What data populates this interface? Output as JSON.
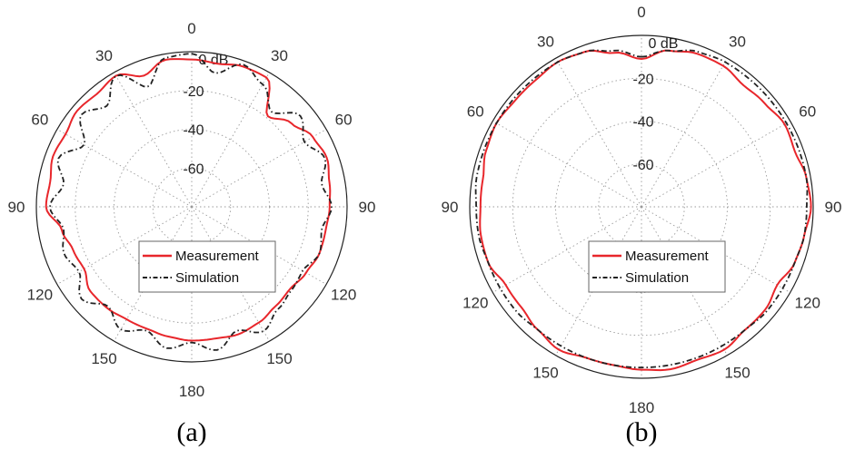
{
  "chart_data": [
    {
      "type": "polar-line",
      "caption": "(a)",
      "angle_labels": [
        "0",
        "30",
        "60",
        "90",
        "120",
        "150",
        "180",
        "150",
        "120",
        "90",
        "60",
        "30"
      ],
      "r_labels": [
        "0 dB",
        "-20",
        "-40",
        "-60"
      ],
      "rlim": [
        -80,
        0
      ],
      "grid": true,
      "legend": {
        "position": "lower-center",
        "entries": [
          "Measurement",
          "Simulation"
        ]
      },
      "series": [
        {
          "name": "Measurement",
          "style": "solid",
          "color": "#e8262b",
          "angles_deg": [
            0,
            10,
            20,
            30,
            40,
            50,
            60,
            70,
            80,
            90,
            100,
            110,
            120,
            130,
            140,
            150,
            160,
            170,
            180,
            190,
            200,
            210,
            220,
            230,
            240,
            250,
            260,
            270,
            280,
            290,
            300,
            310,
            320,
            330,
            340,
            350
          ],
          "values_db": [
            -4,
            -5,
            -3,
            -3,
            -19,
            -13,
            -8,
            -6,
            -8,
            -9,
            -10,
            -10,
            -12,
            -14,
            -13,
            -11,
            -10,
            -11,
            -11,
            -12,
            -13,
            -13,
            -12,
            -12,
            -16,
            -15,
            -12,
            -5,
            -6,
            -4,
            -5,
            -3,
            -4,
            -2,
            -8,
            -3
          ]
        },
        {
          "name": "Simulation",
          "style": "dashdot",
          "color": "#222222",
          "angles_deg": [
            0,
            10,
            20,
            30,
            40,
            50,
            60,
            70,
            80,
            90,
            100,
            110,
            120,
            130,
            140,
            150,
            160,
            170,
            180,
            190,
            200,
            210,
            220,
            230,
            240,
            250,
            260,
            270,
            280,
            290,
            300,
            310,
            320,
            330,
            340,
            350
          ],
          "values_db": [
            -1,
            -10,
            -2,
            -7,
            -16,
            -7,
            -13,
            -7,
            -12,
            -8,
            -12,
            -10,
            -14,
            -13,
            -11,
            -6,
            -12,
            -5,
            -10,
            -6,
            -12,
            -7,
            -13,
            -6,
            -13,
            -10,
            -13,
            -7,
            -13,
            -7,
            -16,
            -6,
            -12,
            -2,
            -14,
            -2
          ]
        }
      ]
    },
    {
      "type": "polar-line",
      "caption": "(b)",
      "angle_labels": [
        "0",
        "30",
        "60",
        "90",
        "120",
        "150",
        "180",
        "150",
        "120",
        "90",
        "60",
        "30"
      ],
      "r_labels": [
        "0 dB",
        "-20",
        "-40",
        "-60"
      ],
      "rlim": [
        -80,
        0
      ],
      "grid": true,
      "legend": {
        "position": "lower-center",
        "entries": [
          "Measurement",
          "Simulation"
        ]
      },
      "series": [
        {
          "name": "Measurement",
          "style": "solid",
          "color": "#e8262b",
          "angles_deg": [
            0,
            10,
            20,
            30,
            40,
            50,
            60,
            70,
            80,
            90,
            100,
            110,
            120,
            130,
            140,
            150,
            160,
            170,
            180,
            190,
            200,
            210,
            220,
            230,
            240,
            250,
            260,
            270,
            280,
            290,
            300,
            310,
            320,
            330,
            340,
            350
          ],
          "values_db": [
            -11,
            -6,
            -4,
            -4,
            -6,
            -5,
            -3,
            -4,
            -2,
            -1,
            -3,
            -4,
            -7,
            -5,
            -5,
            -3,
            -4,
            -3,
            -4,
            -5,
            -5,
            -3,
            -5,
            -7,
            -7,
            -4,
            -4,
            -5,
            -5,
            -3,
            -2,
            -3,
            -3,
            -2,
            -3,
            -7
          ]
        },
        {
          "name": "Simulation",
          "style": "dashdot",
          "color": "#222222",
          "angles_deg": [
            0,
            10,
            20,
            30,
            40,
            50,
            60,
            70,
            80,
            90,
            100,
            110,
            120,
            130,
            140,
            150,
            160,
            170,
            180,
            190,
            200,
            210,
            220,
            230,
            240,
            250,
            260,
            270,
            280,
            290,
            300,
            310,
            320,
            330,
            340,
            350
          ],
          "values_db": [
            -10,
            -6,
            -3,
            -2,
            -2,
            -2,
            -2,
            -2,
            -2,
            -3,
            -3,
            -4,
            -4,
            -4,
            -5,
            -5,
            -5,
            -5,
            -5,
            -5,
            -5,
            -5,
            -5,
            -4,
            -4,
            -4,
            -3,
            -3,
            -2,
            -2,
            -2,
            -2,
            -2,
            -2,
            -3,
            -6
          ]
        }
      ]
    }
  ]
}
